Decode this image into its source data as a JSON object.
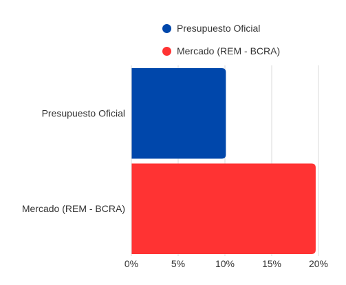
{
  "chart_data": {
    "type": "bar",
    "orientation": "horizontal",
    "categories": [
      "Presupuesto Oficial",
      "Mercado (REM - BCRA)"
    ],
    "values": [
      10.1,
      19.7
    ],
    "colors": [
      "#0047ab",
      "#ff3333"
    ],
    "xlim": [
      0,
      20
    ],
    "xticks": [
      0,
      5,
      10,
      15,
      20
    ],
    "xtick_labels": [
      "0%",
      "5%",
      "10%",
      "15%",
      "20%"
    ],
    "grid": true,
    "legend_position": "top",
    "legend": [
      {
        "label": "Presupuesto Oficial",
        "color": "#0047ab"
      },
      {
        "label": "Mercado (REM - BCRA)",
        "color": "#ff3333"
      }
    ],
    "title": "",
    "xlabel": "",
    "ylabel": ""
  }
}
